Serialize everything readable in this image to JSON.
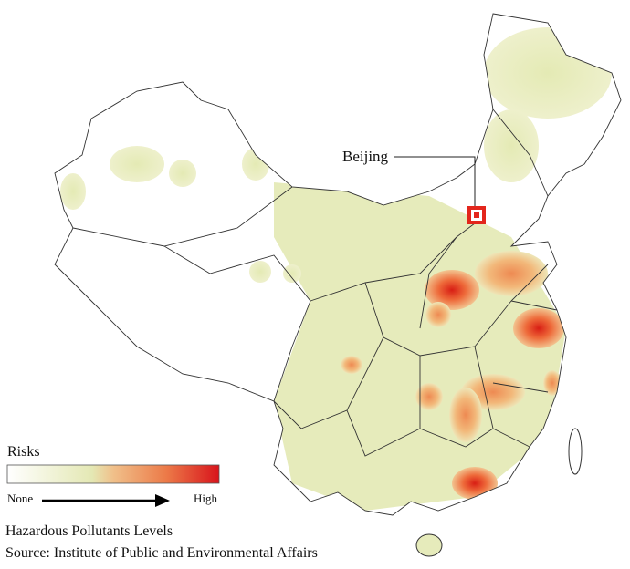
{
  "map": {
    "marker_label": "Beijing"
  },
  "legend": {
    "title": "Risks",
    "low_label": "None",
    "high_label": "High"
  },
  "caption": {
    "title": "Hazardous Pollutants Levels",
    "source": "Source: Institute of Public and Environmental Affairs"
  }
}
